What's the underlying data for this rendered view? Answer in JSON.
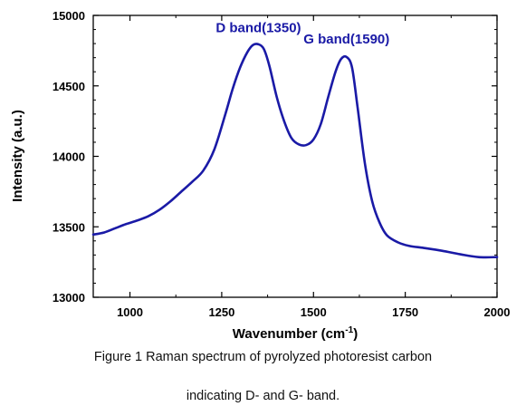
{
  "chart_data": {
    "type": "line",
    "xlabel": "Wavenumber (cm",
    "xlabel_superscript": "-1",
    "xlabel_suffix": ")",
    "ylabel": "Intensity (a.u.)",
    "xlim": [
      900,
      2000
    ],
    "ylim": [
      13000,
      15000
    ],
    "x_ticks": [
      1000,
      1250,
      1500,
      1750,
      2000
    ],
    "y_ticks": [
      13000,
      13500,
      14000,
      14500,
      15000
    ],
    "x_tick_labels": [
      "1000",
      "1250",
      "1500",
      "1750",
      "2000"
    ],
    "y_tick_labels": [
      "13000",
      "13500",
      "14000",
      "14500",
      "15000"
    ],
    "grid": false,
    "series": [
      {
        "color": "#1a1aa6",
        "x": [
          900,
          930,
          960,
          990,
          1020,
          1050,
          1080,
          1110,
          1140,
          1170,
          1200,
          1230,
          1260,
          1280,
          1300,
          1320,
          1335,
          1350,
          1365,
          1380,
          1400,
          1420,
          1440,
          1460,
          1480,
          1500,
          1520,
          1540,
          1560,
          1575,
          1590,
          1605,
          1620,
          1640,
          1660,
          1680,
          1700,
          1730,
          1760,
          1800,
          1850,
          1900,
          1950,
          2000
        ],
        "y": [
          13445,
          13460,
          13490,
          13520,
          13545,
          13575,
          13620,
          13680,
          13750,
          13820,
          13900,
          14050,
          14300,
          14480,
          14630,
          14740,
          14790,
          14795,
          14760,
          14640,
          14420,
          14250,
          14130,
          14085,
          14080,
          14120,
          14230,
          14420,
          14600,
          14690,
          14705,
          14630,
          14350,
          13950,
          13680,
          13530,
          13440,
          13390,
          13365,
          13350,
          13330,
          13305,
          13285,
          13285
        ]
      }
    ],
    "annotations": [
      {
        "text": "D band(1350)",
        "x": 1350,
        "y": 14880
      },
      {
        "text": "G band(1590)",
        "x": 1590,
        "y": 14800
      }
    ]
  },
  "caption": {
    "line1": "Figure 1 Raman spectrum of pyrolyzed photoresist carbon",
    "line2": "indicating D- and G- band."
  }
}
